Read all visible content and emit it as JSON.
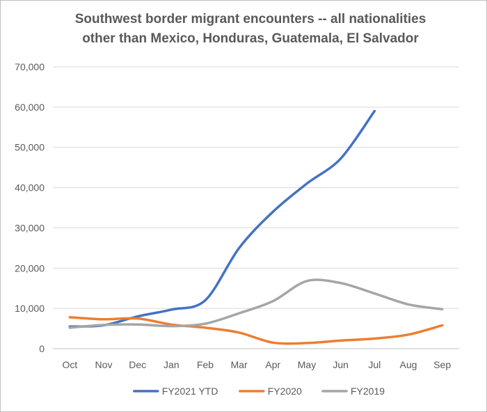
{
  "colors": {
    "background": "#ffffff",
    "border": "#bfbfbf",
    "grid": "#d9d9d9",
    "axis": "#bfbfbf",
    "text": "#595959",
    "title": "#595959"
  },
  "chart_data": {
    "type": "line",
    "title_lines": [
      "Southwest border migrant encounters -- all nationalities",
      "other than Mexico, Honduras, Guatemala, El Salvador"
    ],
    "xlabel": "",
    "ylabel": "",
    "categories": [
      "Oct",
      "Nov",
      "Dec",
      "Jan",
      "Feb",
      "Mar",
      "Apr",
      "May",
      "Jun",
      "Jul",
      "Aug",
      "Sep"
    ],
    "ylim": [
      0,
      70000
    ],
    "yticks": [
      0,
      10000,
      20000,
      30000,
      40000,
      50000,
      60000,
      70000
    ],
    "ytick_labels": [
      "0",
      "10,000",
      "20,000",
      "30,000",
      "40,000",
      "50,000",
      "60,000",
      "70,000"
    ],
    "grid": true,
    "legend_position": "bottom",
    "series": [
      {
        "name": "FY2021 YTD",
        "color": "#4472c4",
        "values": [
          5500,
          5800,
          8000,
          9700,
          12000,
          25000,
          34000,
          41000,
          47200,
          59000,
          null,
          null
        ]
      },
      {
        "name": "FY2020",
        "color": "#ed7d31",
        "values": [
          7800,
          7300,
          7500,
          6000,
          5200,
          4000,
          1500,
          1400,
          2000,
          2500,
          3500,
          5800
        ]
      },
      {
        "name": "FY2019",
        "color": "#a5a5a5",
        "values": [
          5200,
          5900,
          6000,
          5600,
          6200,
          8800,
          11800,
          16800,
          16300,
          13700,
          11000,
          9800
        ]
      }
    ]
  }
}
